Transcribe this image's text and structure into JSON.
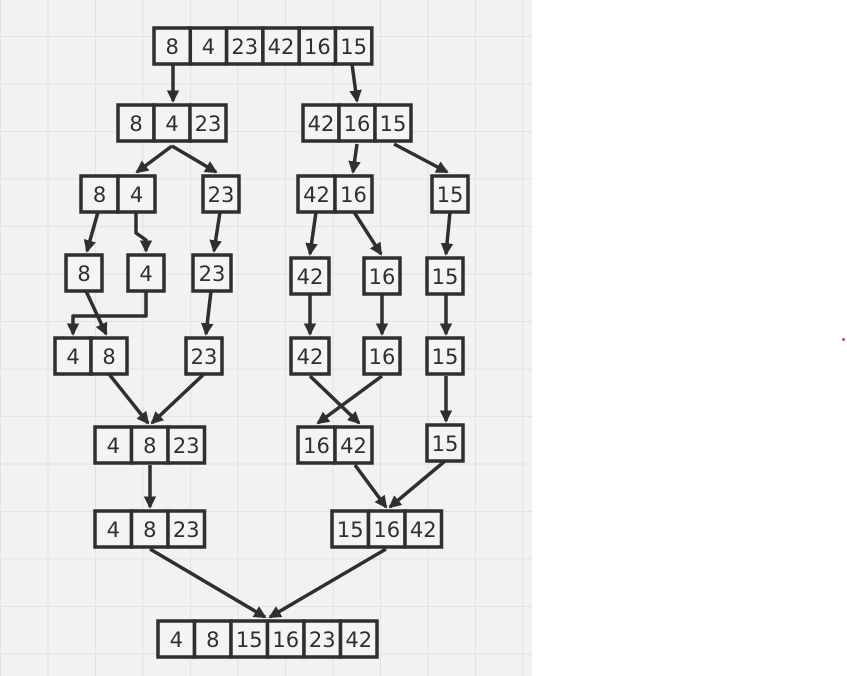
{
  "diagram": {
    "kind": "merge-sort-tree",
    "stroke_color": "#2f2f2f",
    "nodes": [
      {
        "id": "root",
        "values": [
          "8",
          "4",
          "23",
          "42",
          "16",
          "15"
        ]
      },
      {
        "id": "split-left",
        "values": [
          "8",
          "4",
          "23"
        ]
      },
      {
        "id": "split-right",
        "values": [
          "42",
          "16",
          "15"
        ]
      },
      {
        "id": "split-8-4",
        "values": [
          "8",
          "4"
        ]
      },
      {
        "id": "split-23",
        "values": [
          "23"
        ]
      },
      {
        "id": "split-42-16",
        "values": [
          "42",
          "16"
        ]
      },
      {
        "id": "split-15",
        "values": [
          "15"
        ]
      },
      {
        "id": "leaf-8",
        "values": [
          "8"
        ]
      },
      {
        "id": "leaf-4",
        "values": [
          "4"
        ]
      },
      {
        "id": "leaf-23",
        "values": [
          "23"
        ]
      },
      {
        "id": "leaf-42",
        "values": [
          "42"
        ]
      },
      {
        "id": "leaf-16",
        "values": [
          "16"
        ]
      },
      {
        "id": "leaf-15",
        "values": [
          "15"
        ]
      },
      {
        "id": "merged-4-8",
        "values": [
          "4",
          "8"
        ]
      },
      {
        "id": "carry-23",
        "values": [
          "23"
        ]
      },
      {
        "id": "carry-42",
        "values": [
          "42"
        ]
      },
      {
        "id": "carry-16",
        "values": [
          "16"
        ]
      },
      {
        "id": "carry-15-a",
        "values": [
          "15"
        ]
      },
      {
        "id": "merged-4-8-23",
        "values": [
          "4",
          "8",
          "23"
        ]
      },
      {
        "id": "merged-16-42",
        "values": [
          "16",
          "42"
        ]
      },
      {
        "id": "carry-15-b",
        "values": [
          "15"
        ]
      },
      {
        "id": "sorted-4-8-23",
        "values": [
          "4",
          "8",
          "23"
        ]
      },
      {
        "id": "merged-15-16-42",
        "values": [
          "15",
          "16",
          "42"
        ]
      },
      {
        "id": "final-sorted",
        "values": [
          "4",
          "8",
          "15",
          "16",
          "23",
          "42"
        ]
      }
    ],
    "edges": [
      {
        "from": "root",
        "to": "split-left"
      },
      {
        "from": "root",
        "to": "split-right"
      },
      {
        "from": "split-left",
        "to": "split-8-4"
      },
      {
        "from": "split-left",
        "to": "split-23"
      },
      {
        "from": "split-right",
        "to": "split-42-16"
      },
      {
        "from": "split-right",
        "to": "split-15"
      },
      {
        "from": "split-8-4",
        "to": "leaf-8"
      },
      {
        "from": "split-8-4",
        "to": "leaf-4"
      },
      {
        "from": "split-23",
        "to": "leaf-23"
      },
      {
        "from": "split-42-16",
        "to": "leaf-42"
      },
      {
        "from": "split-42-16",
        "to": "leaf-16"
      },
      {
        "from": "split-15",
        "to": "leaf-15"
      },
      {
        "from": "leaf-8",
        "to": "merged-4-8"
      },
      {
        "from": "leaf-4",
        "to": "merged-4-8"
      },
      {
        "from": "leaf-23",
        "to": "carry-23"
      },
      {
        "from": "leaf-42",
        "to": "carry-42"
      },
      {
        "from": "leaf-16",
        "to": "carry-16"
      },
      {
        "from": "leaf-15",
        "to": "carry-15-a"
      },
      {
        "from": "merged-4-8",
        "to": "merged-4-8-23"
      },
      {
        "from": "carry-23",
        "to": "merged-4-8-23"
      },
      {
        "from": "carry-42",
        "to": "merged-16-42"
      },
      {
        "from": "carry-16",
        "to": "merged-16-42"
      },
      {
        "from": "carry-15-a",
        "to": "carry-15-b"
      },
      {
        "from": "merged-4-8-23",
        "to": "sorted-4-8-23"
      },
      {
        "from": "merged-16-42",
        "to": "merged-15-16-42"
      },
      {
        "from": "carry-15-b",
        "to": "merged-15-16-42"
      },
      {
        "from": "sorted-4-8-23",
        "to": "final-sorted"
      },
      {
        "from": "merged-15-16-42",
        "to": "final-sorted"
      }
    ]
  },
  "canvas": {
    "background": "#f2f2f2",
    "grid_color": "#e3e3e3",
    "accent_dot": "#e8375b"
  }
}
